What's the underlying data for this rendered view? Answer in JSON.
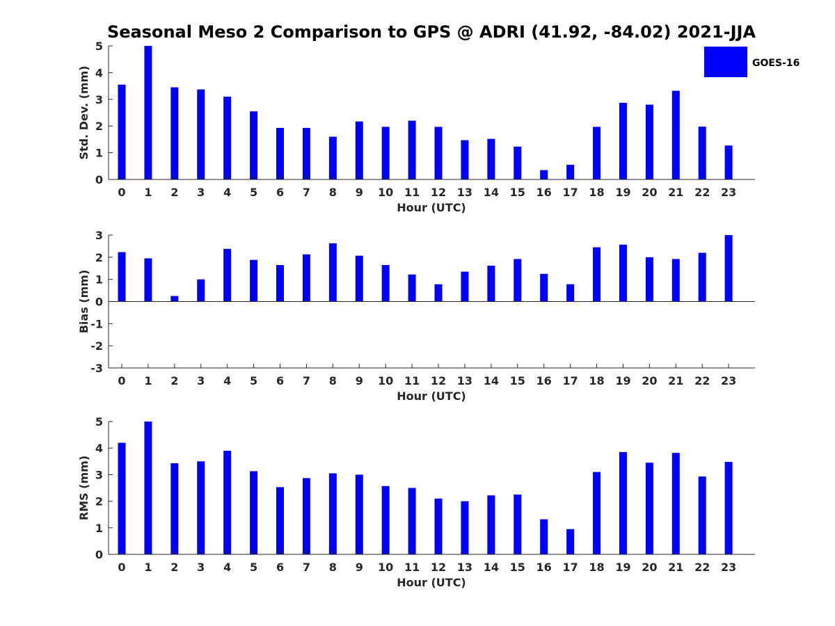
{
  "title": "Seasonal Meso 2 Comparison to GPS @ ADRI (41.92, -84.02) 2021-JJA",
  "legend": {
    "label": "GOES-16",
    "color": "#0000ff"
  },
  "chart_data": [
    {
      "type": "bar",
      "name": "std",
      "xlabel": "Hour (UTC)",
      "ylabel": "Std. Dev. (mm)",
      "ylim": [
        0,
        5
      ],
      "yticks": [
        0,
        1,
        2,
        3,
        4,
        5
      ],
      "categories": [
        "0",
        "1",
        "2",
        "3",
        "4",
        "5",
        "6",
        "7",
        "8",
        "9",
        "10",
        "11",
        "12",
        "13",
        "14",
        "15",
        "16",
        "17",
        "18",
        "19",
        "20",
        "21",
        "22",
        "23"
      ],
      "series": [
        {
          "name": "GOES-16",
          "values": [
            3.55,
            5.0,
            3.45,
            3.37,
            3.1,
            2.55,
            1.93,
            1.93,
            1.6,
            2.17,
            1.97,
            2.2,
            1.97,
            1.47,
            1.52,
            1.23,
            0.35,
            0.55,
            1.97,
            2.87,
            2.8,
            3.32,
            1.98,
            1.27
          ]
        }
      ]
    },
    {
      "type": "bar",
      "name": "bias",
      "xlabel": "Hour (UTC)",
      "ylabel": "Bias (mm)",
      "ylim": [
        -3,
        3
      ],
      "yticks": [
        -3,
        -2,
        -1,
        0,
        1,
        2,
        3
      ],
      "categories": [
        "0",
        "1",
        "2",
        "3",
        "4",
        "5",
        "6",
        "7",
        "8",
        "9",
        "10",
        "11",
        "12",
        "13",
        "14",
        "15",
        "16",
        "17",
        "18",
        "19",
        "20",
        "21",
        "22",
        "23"
      ],
      "series": [
        {
          "name": "GOES-16",
          "values": [
            2.23,
            1.95,
            0.25,
            1.0,
            2.38,
            1.88,
            1.65,
            2.13,
            2.63,
            2.07,
            1.65,
            1.22,
            0.78,
            1.35,
            1.62,
            1.92,
            1.25,
            0.78,
            2.45,
            2.57,
            2.0,
            1.92,
            2.2,
            3.0
          ]
        }
      ],
      "zero_line": true
    },
    {
      "type": "bar",
      "name": "rms",
      "xlabel": "Hour (UTC)",
      "ylabel": "RMS (mm)",
      "ylim": [
        0,
        5
      ],
      "yticks": [
        0,
        1,
        2,
        3,
        4,
        5
      ],
      "categories": [
        "0",
        "1",
        "2",
        "3",
        "4",
        "5",
        "6",
        "7",
        "8",
        "9",
        "10",
        "11",
        "12",
        "13",
        "14",
        "15",
        "16",
        "17",
        "18",
        "19",
        "20",
        "21",
        "22",
        "23"
      ],
      "series": [
        {
          "name": "GOES-16",
          "values": [
            4.2,
            5.0,
            3.43,
            3.5,
            3.9,
            3.13,
            2.53,
            2.87,
            3.05,
            3.0,
            2.57,
            2.5,
            2.1,
            2.0,
            2.22,
            2.25,
            1.32,
            0.95,
            3.1,
            3.85,
            3.45,
            3.82,
            2.93,
            3.48
          ]
        }
      ]
    }
  ]
}
